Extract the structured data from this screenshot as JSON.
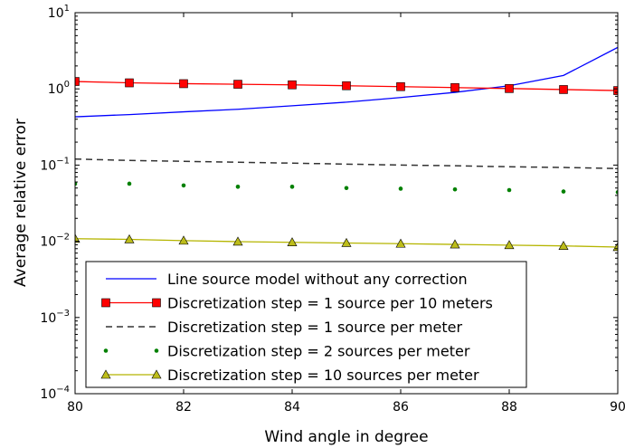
{
  "chart_data": {
    "type": "line",
    "xlabel": "Wind angle in degree",
    "ylabel": "Average relative error",
    "xlim": [
      80,
      90
    ],
    "ylim": [
      0.0001,
      10
    ],
    "yscale": "log",
    "x_ticks": [
      "80",
      "82",
      "84",
      "86",
      "88",
      "90"
    ],
    "y_ticks": [
      {
        "base": "10",
        "exp": "−4"
      },
      {
        "base": "10",
        "exp": "−3"
      },
      {
        "base": "10",
        "exp": "−2"
      },
      {
        "base": "10",
        "exp": "−1"
      },
      {
        "base": "10",
        "exp": "0"
      },
      {
        "base": "10",
        "exp": "1"
      }
    ],
    "y_tick_values": [
      0.0001,
      0.001,
      0.01,
      0.1,
      1,
      10
    ],
    "grid": false,
    "legend_position": "lower-center",
    "series": [
      {
        "name": "Line source model without any correction",
        "color": "#0000ff",
        "style": "solid",
        "marker": "none",
        "x": [
          80,
          81,
          82,
          83,
          84,
          85,
          86,
          87,
          88,
          89,
          90
        ],
        "y": [
          0.43,
          0.46,
          0.5,
          0.54,
          0.6,
          0.67,
          0.77,
          0.9,
          1.1,
          1.5,
          3.5
        ]
      },
      {
        "name": "Discretization step = 1 source per 10 meters",
        "color": "#ff0000",
        "style": "solid",
        "marker": "square",
        "x": [
          80,
          81,
          82,
          83,
          84,
          85,
          86,
          87,
          88,
          89,
          90
        ],
        "y": [
          1.25,
          1.2,
          1.17,
          1.15,
          1.13,
          1.1,
          1.07,
          1.04,
          1.01,
          0.98,
          0.95
        ]
      },
      {
        "name": "Discretization step = 1 source per meter",
        "color": "#333333",
        "style": "dashed",
        "marker": "none",
        "x": [
          80,
          81,
          82,
          83,
          84,
          85,
          86,
          87,
          88,
          89,
          90
        ],
        "y": [
          0.12,
          0.115,
          0.112,
          0.109,
          0.106,
          0.103,
          0.1,
          0.098,
          0.095,
          0.093,
          0.09
        ]
      },
      {
        "name": "Discretization step = 2 sources per meter",
        "color": "#008000",
        "style": "none",
        "marker": "dot",
        "x": [
          80,
          81,
          82,
          83,
          84,
          85,
          86,
          87,
          88,
          89,
          90
        ],
        "y": [
          0.057,
          0.057,
          0.054,
          0.052,
          0.052,
          0.05,
          0.049,
          0.048,
          0.047,
          0.045,
          0.044
        ]
      },
      {
        "name": "Discretization step = 10 sources per meter",
        "color": "#b5b500",
        "marker_fill": "#bdbd1a",
        "style": "solid",
        "marker": "triangle",
        "x": [
          80,
          81,
          82,
          83,
          84,
          85,
          86,
          87,
          88,
          89,
          90
        ],
        "y": [
          0.0108,
          0.0106,
          0.0102,
          0.0099,
          0.0097,
          0.0095,
          0.0093,
          0.0091,
          0.0089,
          0.0087,
          0.0084
        ]
      }
    ]
  }
}
